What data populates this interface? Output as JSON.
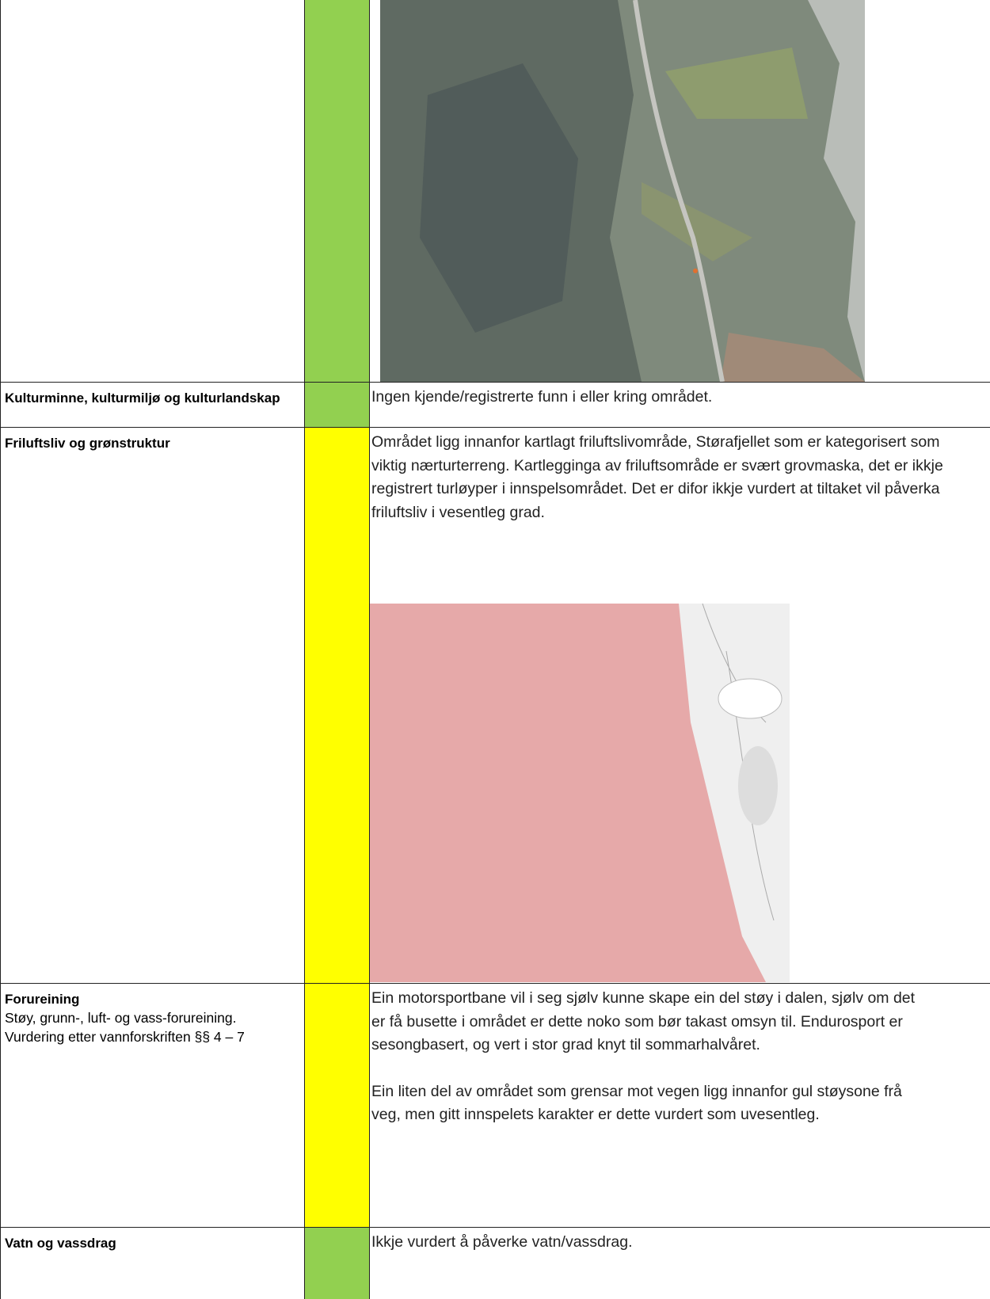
{
  "table": {
    "rows": [
      {
        "rating_color": "#92d050"
      },
      {
        "label": "Kulturminne, kulturmiljø og kulturlandskap",
        "rating_color": "#92d050",
        "text": [
          "Ingen kjende/registrerte funn i eller kring området."
        ]
      },
      {
        "label": "Friluftsliv og grønstruktur",
        "rating_color": "#ffff00",
        "text": [
          "Området ligg innanfor kartlagt friluftslivområde, Størafjellet som er kategorisert som viktig nærturterreng. Kartlegginga av friluftsområde er svært grovmaska, det er ikkje registrert turløyper i innspelsområdet. Det er difor ikkje vurdert at tiltaket vil påverka friluftsliv i vesentleg grad."
        ]
      },
      {
        "label": "Forureining",
        "sublabel": "Støy, grunn-, luft- og vass-forureining. Vurdering etter vannforskriften §§ 4 – 7",
        "rating_color": "#ffff00",
        "text": [
          "Ein motorsportbane vil i seg sjølv kunne skape ein del støy i dalen, sjølv om det er få busette i området er dette noko som bør takast omsyn til. Endurosport er sesongbasert, og vert i stor grad knyt til sommarhalvåret.",
          "Ein liten del av området som grensar mot vegen ligg innanfor gul støysone frå veg, men gitt innspelets karakter er dette vurdert som uvesentleg."
        ]
      },
      {
        "label": "Vatn og vassdrag",
        "rating_color": "#92d050",
        "text": [
          "Ikkje vurdert å påverke vatn/vassdrag."
        ]
      }
    ]
  }
}
